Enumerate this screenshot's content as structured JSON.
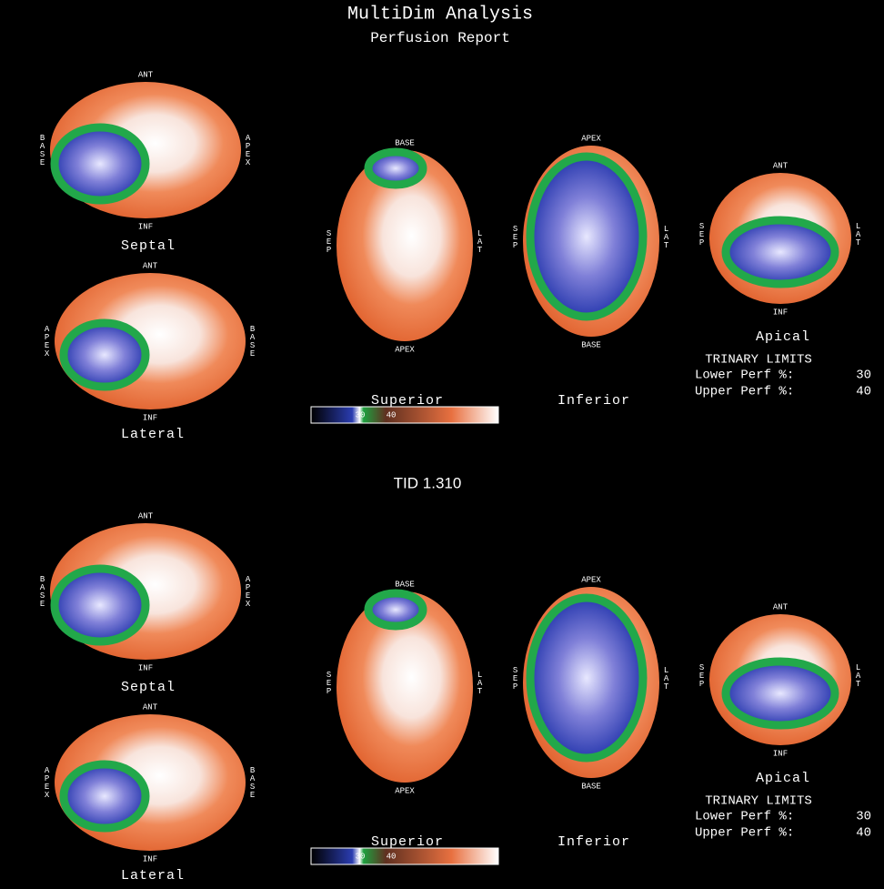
{
  "header": {
    "title": "MultiDim Analysis",
    "subtitle": "Perfusion Report"
  },
  "tid": "TID 1.310",
  "panels": [
    {
      "views": [
        {
          "name": "Septal",
          "top": "ANT",
          "bottom": "INF",
          "left": "BASE",
          "right": "APEX"
        },
        {
          "name": "Lateral",
          "top": "ANT",
          "bottom": "INF",
          "left": "APEX",
          "right": "BASE"
        },
        {
          "name": "Superior",
          "top": "BASE",
          "bottom": "APEX",
          "left": "SEP",
          "right": "LAT"
        },
        {
          "name": "Inferior",
          "top": "APEX",
          "bottom": "BASE",
          "left": "SEP",
          "right": "LAT"
        },
        {
          "name": "Apical",
          "top": "ANT",
          "bottom": "INF",
          "left": "SEP",
          "right": "LAT"
        }
      ],
      "colorbar": {
        "low": 30,
        "high": 40
      },
      "limits": {
        "title": "TRINARY LIMITS",
        "rows": [
          {
            "label": "Lower Perf %:",
            "value": 30
          },
          {
            "label": "Upper Perf %:",
            "value": 40
          }
        ]
      }
    },
    {
      "views": [
        {
          "name": "Septal",
          "top": "ANT",
          "bottom": "INF",
          "left": "BASE",
          "right": "APEX"
        },
        {
          "name": "Lateral",
          "top": "ANT",
          "bottom": "INF",
          "left": "APEX",
          "right": "BASE"
        },
        {
          "name": "Superior",
          "top": "BASE",
          "bottom": "APEX",
          "left": "SEP",
          "right": "LAT"
        },
        {
          "name": "Inferior",
          "top": "APEX",
          "bottom": "BASE",
          "left": "SEP",
          "right": "LAT"
        },
        {
          "name": "Apical",
          "top": "ANT",
          "bottom": "INF",
          "left": "SEP",
          "right": "LAT"
        }
      ],
      "colorbar": {
        "low": 30,
        "high": 40
      },
      "limits": {
        "title": "TRINARY LIMITS",
        "rows": [
          {
            "label": "Lower Perf %:",
            "value": 30
          },
          {
            "label": "Upper Perf %:",
            "value": 40
          }
        ]
      }
    }
  ]
}
